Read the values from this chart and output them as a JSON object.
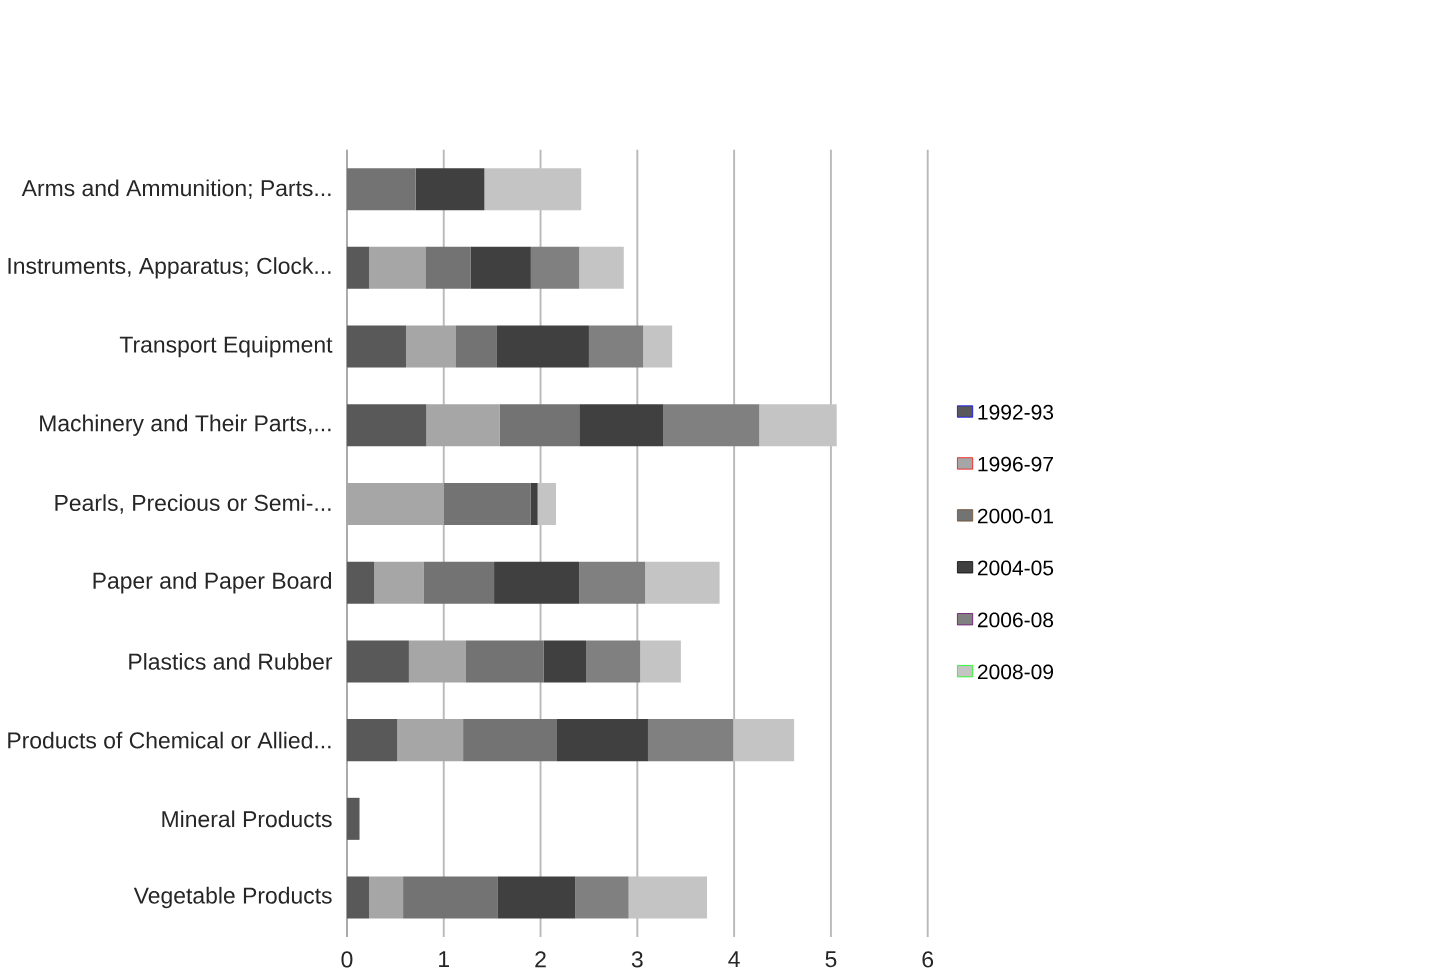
{
  "chart_data": {
    "type": "bar",
    "orientation": "horizontal",
    "stacked": true,
    "categories": [
      "Arms and Ammunition; Parts...",
      "Instruments, Apparatus; Clock...",
      "Transport Equipment",
      "Machinery and Their Parts,...",
      "Pearls, Precious or Semi-...",
      "Paper and Paper Board",
      "Plastics and Rubber",
      "Products of Chemical or Allied...",
      "Mineral Products",
      "Vegetable Products"
    ],
    "series": [
      {
        "name": "1992-93",
        "color": "#595959",
        "values": [
          0,
          0.23,
          0.61,
          0.82,
          0,
          0.28,
          0.64,
          0.52,
          0.13,
          0.23
        ]
      },
      {
        "name": "1996-97",
        "color": "#a6a6a6",
        "values": [
          0,
          0.58,
          0.51,
          0.76,
          1.0,
          0.51,
          0.59,
          0.68,
          0,
          0.35
        ]
      },
      {
        "name": "2000-01",
        "color": "#737373",
        "values": [
          0.71,
          0.47,
          0.43,
          0.82,
          0.9,
          0.73,
          0.8,
          0.97,
          0,
          0.98
        ]
      },
      {
        "name": "2004-05",
        "color": "#404040",
        "values": [
          0.71,
          0.62,
          0.95,
          0.87,
          0.07,
          0.88,
          0.44,
          0.94,
          0,
          0.8
        ]
      },
      {
        "name": "2006-08",
        "color": "#808080",
        "values": [
          0,
          0.5,
          0.56,
          0.99,
          0,
          0.68,
          0.56,
          0.88,
          0,
          0.55
        ]
      },
      {
        "name": "2008-09",
        "color": "#c4c4c4",
        "values": [
          1.0,
          0.46,
          0.3,
          0.8,
          0.19,
          0.77,
          0.42,
          0.63,
          0,
          0.81
        ]
      }
    ],
    "xlim": [
      0,
      6
    ],
    "xticks": [
      0,
      1,
      2,
      3,
      4,
      5,
      6
    ],
    "grid": "x",
    "legend": "right"
  }
}
